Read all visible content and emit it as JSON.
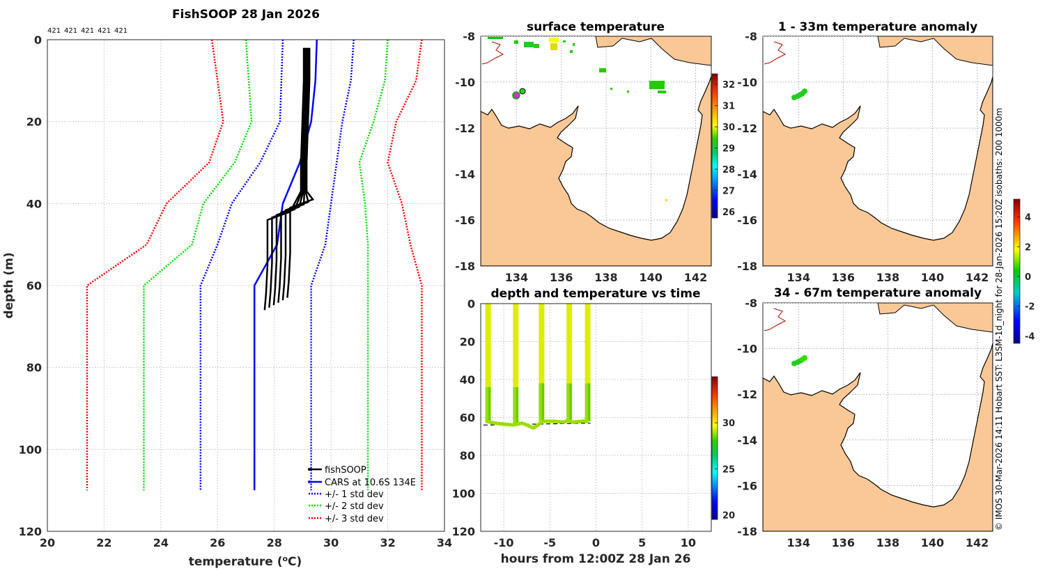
{
  "profile": {
    "title": "FishSOOP 28 Jan 2026",
    "drop_ids": [
      "421",
      "421",
      "421",
      "421",
      "421"
    ],
    "xlabel": "temperature (",
    "xlabel_sup": "o",
    "xlabel_end": "C)",
    "ylabel": "depth (m)",
    "xlim": [
      20,
      34
    ],
    "ylim": [
      0,
      120
    ],
    "xticks": [
      20,
      22,
      24,
      26,
      28,
      30,
      32,
      34
    ],
    "yticks": [
      0,
      20,
      40,
      60,
      80,
      100,
      120
    ],
    "legend": [
      "fishSOOP",
      "CARS at 10.6S 134E",
      "+/- 1 std dev",
      "+/- 2 std dev",
      "+/- 3 std dev"
    ]
  },
  "maps": {
    "surface_title": "surface temperature",
    "anom1_title": "1 - 33m temperature anomaly",
    "anom2_title": "34 - 67m temperature anomaly",
    "lon_ticks": [
      134,
      136,
      138,
      140,
      142
    ],
    "lat_ticks": [
      -8,
      -10,
      -12,
      -14,
      -16,
      -18
    ],
    "sst_colorbar_ticks": [
      32,
      31,
      30,
      29,
      28,
      27,
      26
    ],
    "anom_colorbar_ticks": [
      4,
      2,
      0,
      -2,
      -4
    ]
  },
  "timeplot": {
    "title": "depth and temperature vs time",
    "xlabel": "hours from 12:00Z 28 Jan 26",
    "xticks": [
      -10,
      -5,
      0,
      5,
      10
    ],
    "yticks": [
      0,
      20,
      40,
      60,
      80,
      100,
      120
    ],
    "colorbar_ticks": [
      30,
      25,
      20
    ]
  },
  "credit": "© IMOS 30-Mar-2026 14:11 Hobart SST: L3SM-1d_night for 28-Jan-2026 15:20Z isobaths: 200  1000m",
  "chart_data": [
    {
      "type": "line",
      "title": "FishSOOP 28 Jan 2026",
      "xlabel": "temperature (oC)",
      "ylabel": "depth (m)",
      "xlim": [
        20,
        34
      ],
      "ylim": [
        120,
        0
      ],
      "series": [
        {
          "name": "CARS at 10.6S 134E",
          "color": "#0000ff",
          "temps": [
            29.5,
            29.45,
            29.3,
            28.9,
            28.3,
            28.1,
            27.3,
            27.3
          ],
          "depths": [
            0,
            10,
            20,
            30,
            40,
            50,
            60,
            110
          ]
        },
        {
          "name": "-1 std dev",
          "color": "#0000ff",
          "temps": [
            28.3,
            28.25,
            28.2,
            27.5,
            26.5,
            26.0,
            25.4,
            25.4
          ],
          "depths": [
            0,
            10,
            20,
            30,
            40,
            50,
            60,
            110
          ]
        },
        {
          "name": "+1 std dev",
          "color": "#0000ff",
          "temps": [
            30.8,
            30.7,
            30.4,
            30.2,
            30.0,
            29.8,
            29.3,
            29.3
          ],
          "depths": [
            0,
            10,
            20,
            30,
            40,
            50,
            60,
            110
          ]
        },
        {
          "name": "-2 std dev",
          "color": "#00dd00",
          "temps": [
            27.0,
            27.1,
            27.2,
            26.6,
            25.5,
            25.1,
            23.4,
            23.4
          ],
          "depths": [
            0,
            10,
            20,
            30,
            40,
            50,
            60,
            110
          ]
        },
        {
          "name": "+2 std dev",
          "color": "#00dd00",
          "temps": [
            32.0,
            31.9,
            31.5,
            31.0,
            31.2,
            31.3,
            31.3,
            31.3
          ],
          "depths": [
            0,
            10,
            20,
            30,
            40,
            50,
            60,
            110
          ]
        },
        {
          "name": "-3 std dev",
          "color": "#ff0000",
          "temps": [
            25.8,
            26.0,
            26.2,
            25.7,
            24.2,
            23.5,
            21.4,
            21.4
          ],
          "depths": [
            0,
            10,
            20,
            30,
            40,
            50,
            60,
            110
          ]
        },
        {
          "name": "+3 std dev",
          "color": "#ff0000",
          "temps": [
            33.2,
            33.0,
            32.3,
            32.0,
            32.5,
            32.8,
            33.2,
            33.2
          ],
          "depths": [
            0,
            10,
            20,
            30,
            40,
            50,
            60,
            110
          ]
        },
        {
          "name": "fishSOOP",
          "color": "#000000",
          "temps": [
            29.1,
            29.1,
            29.05,
            29.0,
            29.0,
            28.8,
            28.0,
            28.0,
            27.95,
            27.9
          ],
          "depths": [
            2,
            10,
            20,
            30,
            37,
            42,
            44,
            55,
            62,
            66
          ]
        }
      ]
    },
    {
      "type": "scatter",
      "title": "depth and temperature vs time",
      "xlabel": "hours from 12:00Z 28 Jan 26",
      "xlim": [
        -12.5,
        12.5
      ],
      "ylim": [
        120,
        0
      ],
      "casts": [
        {
          "time": -11.7,
          "bottom": 63
        },
        {
          "time": -8.7,
          "bottom": 63
        },
        {
          "time": -5.9,
          "bottom": 62
        },
        {
          "time": -2.9,
          "bottom": 62
        },
        {
          "time": -0.9,
          "bottom": 62
        }
      ],
      "colorbar_range": [
        20,
        35
      ]
    }
  ]
}
